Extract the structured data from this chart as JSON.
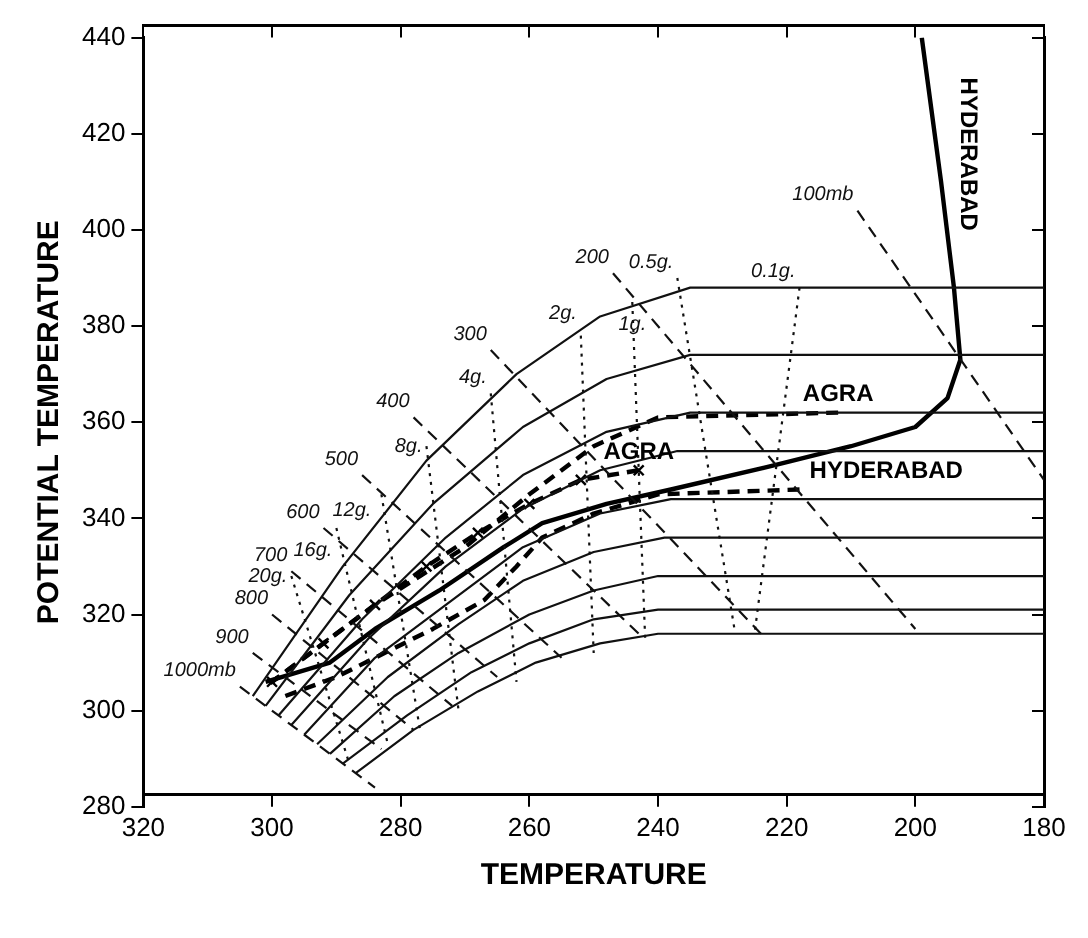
{
  "chart_data": {
    "type": "line",
    "xlabel": "TEMPERATURE",
    "ylabel": "POTENTIAL TEMPERATURE",
    "xlim": [
      320,
      180
    ],
    "ylim": [
      280,
      440
    ],
    "xticks": [
      320,
      300,
      280,
      260,
      240,
      220,
      200,
      180
    ],
    "yticks": [
      280,
      300,
      320,
      340,
      360,
      380,
      400,
      420,
      440
    ],
    "grid": false,
    "legend": false,
    "marker": "none",
    "series": [
      {
        "color": "#111111",
        "line_style": "solid",
        "x": [
          303,
          289,
          276,
          262,
          249,
          235,
          180
        ],
        "values": [
          303,
          330,
          352,
          370,
          382,
          388,
          388
        ]
      },
      {
        "color": "#111111",
        "line_style": "solid",
        "x": [
          301,
          288,
          275,
          261,
          248,
          235,
          180
        ],
        "values": [
          301,
          324,
          343,
          359,
          369,
          374,
          374
        ]
      },
      {
        "color": "#111111",
        "line_style": "solid",
        "x": [
          299,
          286,
          273,
          261,
          248,
          235,
          180
        ],
        "values": [
          299,
          319,
          336,
          349,
          358,
          362,
          362
        ]
      },
      {
        "color": "#111111",
        "line_style": "solid",
        "x": [
          297,
          285,
          273,
          261,
          249,
          237,
          180
        ],
        "values": [
          297,
          315,
          330,
          342,
          350,
          354,
          354
        ]
      },
      {
        "color": "#111111",
        "line_style": "solid",
        "x": [
          295,
          284,
          272,
          261,
          249,
          238,
          180
        ],
        "values": [
          295,
          311,
          323,
          334,
          341,
          344,
          344
        ]
      },
      {
        "color": "#111111",
        "line_style": "solid",
        "x": [
          293,
          282,
          271,
          261,
          250,
          239,
          180
        ],
        "values": [
          293,
          307,
          318,
          327,
          333,
          336,
          336
        ]
      },
      {
        "color": "#111111",
        "line_style": "solid",
        "x": [
          291,
          281,
          271,
          260,
          250,
          240,
          180
        ],
        "values": [
          291,
          303,
          312,
          320,
          325,
          328,
          328
        ]
      },
      {
        "color": "#111111",
        "line_style": "solid",
        "x": [
          289,
          279,
          269,
          260,
          250,
          240,
          180
        ],
        "values": [
          289,
          299,
          308,
          314,
          319,
          321,
          321
        ]
      },
      {
        "color": "#111111",
        "line_style": "solid",
        "x": [
          287,
          278,
          268,
          259,
          249,
          240,
          180
        ],
        "values": [
          287,
          296,
          304,
          310,
          314,
          316,
          316
        ]
      },
      {
        "name": "1000mb",
        "color": "#111111",
        "line_style": "dashed",
        "x": [
          305,
          284
        ],
        "values": [
          305,
          284
        ]
      },
      {
        "name": "900",
        "color": "#111111",
        "line_style": "dashed",
        "x": [
          303,
          283
        ],
        "values": [
          312,
          292
        ]
      },
      {
        "name": "800",
        "color": "#111111",
        "line_style": "dashed",
        "x": [
          300,
          278
        ],
        "values": [
          320,
          296
        ]
      },
      {
        "name": "700",
        "color": "#111111",
        "line_style": "dashed",
        "x": [
          297,
          272
        ],
        "values": [
          329,
          301
        ]
      },
      {
        "name": "600",
        "color": "#111111",
        "line_style": "dashed",
        "x": [
          292,
          265
        ],
        "values": [
          338,
          307
        ]
      },
      {
        "name": "500",
        "color": "#111111",
        "line_style": "dashed",
        "x": [
          286,
          255
        ],
        "values": [
          349,
          311
        ]
      },
      {
        "name": "400",
        "color": "#111111",
        "line_style": "dashed",
        "x": [
          278,
          243
        ],
        "values": [
          361,
          316
        ]
      },
      {
        "name": "300",
        "color": "#111111",
        "line_style": "dashed",
        "x": [
          266,
          224
        ],
        "values": [
          375,
          316
        ]
      },
      {
        "name": "200",
        "color": "#111111",
        "line_style": "dashed",
        "x": [
          247,
          200
        ],
        "values": [
          391,
          317
        ]
      },
      {
        "name": "100mb",
        "color": "#111111",
        "line_style": "dashed",
        "x": [
          209,
          180
        ],
        "values": [
          404,
          348
        ]
      },
      {
        "name": "20g.",
        "color": "#111111",
        "line_style": "dotted",
        "x": [
          297,
          288
        ],
        "values": [
          328,
          289
        ]
      },
      {
        "name": "16g.",
        "color": "#111111",
        "line_style": "dotted",
        "x": [
          290,
          282
        ],
        "values": [
          338,
          293
        ]
      },
      {
        "name": "12g.",
        "color": "#111111",
        "line_style": "dotted",
        "x": [
          283,
          277
        ],
        "values": [
          345,
          296
        ]
      },
      {
        "name": "8g.",
        "color": "#111111",
        "line_style": "dotted",
        "x": [
          276,
          271
        ],
        "values": [
          355,
          300
        ]
      },
      {
        "name": "4g.",
        "color": "#111111",
        "line_style": "dotted",
        "x": [
          266,
          262
        ],
        "values": [
          366,
          306
        ]
      },
      {
        "name": "2g.",
        "color": "#111111",
        "line_style": "dotted",
        "x": [
          252,
          250
        ],
        "values": [
          378,
          312
        ]
      },
      {
        "name": "1g.",
        "color": "#111111",
        "line_style": "dotted",
        "x": [
          244,
          242
        ],
        "values": [
          385,
          315
        ]
      },
      {
        "name": "0.5g.",
        "color": "#111111",
        "line_style": "dotted",
        "x": [
          237,
          228
        ],
        "values": [
          390,
          316
        ]
      },
      {
        "name": "0.1g.",
        "color": "#111111",
        "line_style": "dotted",
        "x": [
          218,
          225
        ],
        "values": [
          388,
          316
        ]
      },
      {
        "name": "HYDERABAD",
        "color": "#000000",
        "line_style": "solid",
        "x": [
          199,
          196,
          194,
          193,
          195,
          200,
          210,
          222,
          238,
          248,
          258,
          264,
          274,
          284,
          291,
          301
        ],
        "values": [
          440,
          410,
          388,
          373,
          365,
          359,
          355,
          351,
          346,
          343,
          339,
          334,
          325,
          317,
          310,
          306
        ]
      },
      {
        "name": "AGRA",
        "color": "#000000",
        "line_style": "dashed",
        "x": [
          212,
          240,
          250,
          260,
          270,
          284,
          293,
          301
        ],
        "values": [
          362,
          361,
          355,
          345,
          334,
          322,
          313,
          305
        ]
      },
      {
        "name": "AGRA",
        "color": "#000000",
        "line_style": "dashed",
        "marker": "cross",
        "x": [
          243,
          252,
          260,
          268,
          276,
          284,
          292,
          300
        ],
        "values": [
          350,
          348,
          343,
          337,
          330,
          322,
          314,
          306
        ]
      },
      {
        "name": "HYDERABAD",
        "color": "#000000",
        "line_style": "dashed",
        "x": [
          218,
          240,
          250,
          258,
          262,
          267,
          275,
          284,
          290,
          298
        ],
        "values": [
          346,
          345,
          341,
          336,
          330,
          323,
          317,
          311,
          307,
          303
        ]
      }
    ]
  }
}
